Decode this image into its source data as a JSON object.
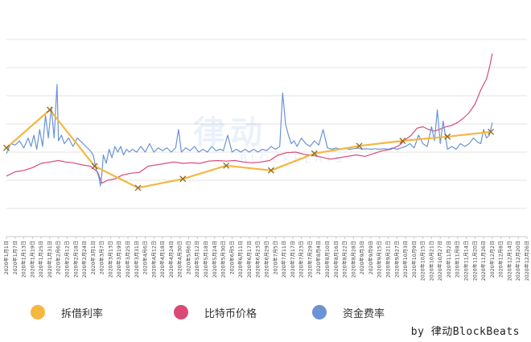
{
  "watermark": {
    "text": "律动",
    "sub": "BLOCKBEATS"
  },
  "credit": "by 律动BlockBeats",
  "legend": [
    {
      "label": "拆借利率",
      "color": "#f4b740"
    },
    {
      "label": "比特币价格",
      "color": "#d94a77"
    },
    {
      "label": "资金费率",
      "color": "#6b93d6"
    }
  ],
  "chart_data": {
    "type": "line",
    "title": "",
    "grid": true,
    "x_tick_labels": [
      "2020年1月1日",
      "2020年1月7日",
      "2020年1月13日",
      "2020年1月19日",
      "2020年1月25日",
      "2020年1月31日",
      "2020年2月6日",
      "2020年2月12日",
      "2020年2月18日",
      "2020年2月24日",
      "2020年3月1日",
      "2020年3月7日",
      "2020年3月13日",
      "2020年3月19日",
      "2020年3月25日",
      "2020年3月31日",
      "2020年4月6日",
      "2020年4月12日",
      "2020年4月18日",
      "2020年4月24日",
      "2020年4月30日",
      "2020年5月6日",
      "2020年5月12日",
      "2020年5月18日",
      "2020年5月24日",
      "2020年5月30日",
      "2020年6月5日",
      "2020年6月11日",
      "2020年6月17日",
      "2020年6月23日",
      "2020年6月29日",
      "2020年7月5日",
      "2020年7月11日",
      "2020年7月17日",
      "2020年7月23日",
      "2020年7月29日",
      "2020年8月4日",
      "2020年8月10日",
      "2020年8月16日",
      "2020年8月22日",
      "2020年8月28日",
      "2020年9月3日",
      "2020年9月9日",
      "2020年9月15日",
      "2020年9月21日",
      "2020年9月27日",
      "2020年10月3日",
      "2020年10月9日",
      "2020年10月15日",
      "2020年10月21日",
      "2020年10月27日",
      "2020年11月2日",
      "2020年11月8日",
      "2020年11月14日",
      "2020年11月20日",
      "2020年11月26日",
      "2020年12月2日",
      "2020年12月8日",
      "2020年12月14日",
      "2020年12月20日",
      "2020年12月26日"
    ],
    "y_range": [
      0,
      8
    ],
    "y_gridlines": [
      1,
      2,
      3,
      4,
      5,
      6,
      7
    ],
    "series": [
      {
        "name": "拆借利率",
        "color": "#f4b740",
        "marker": "x",
        "points": [
          [
            0,
            3.15
          ],
          [
            30,
            4.5
          ],
          [
            61,
            2.5
          ],
          [
            91,
            1.73
          ],
          [
            122,
            2.05
          ],
          [
            152,
            2.52
          ],
          [
            183,
            2.35
          ],
          [
            213,
            2.95
          ],
          [
            244,
            3.22
          ],
          [
            274,
            3.4
          ],
          [
            305,
            3.55
          ],
          [
            335,
            3.72
          ]
        ]
      },
      {
        "name": "比特币价格",
        "color": "#d94a77",
        "points": [
          [
            0,
            2.15
          ],
          [
            6,
            2.3
          ],
          [
            12,
            2.35
          ],
          [
            18,
            2.45
          ],
          [
            24,
            2.6
          ],
          [
            30,
            2.65
          ],
          [
            36,
            2.7
          ],
          [
            41,
            2.65
          ],
          [
            46,
            2.62
          ],
          [
            52,
            2.55
          ],
          [
            58,
            2.5
          ],
          [
            63,
            2.3
          ],
          [
            66,
            1.9
          ],
          [
            70,
            2.0
          ],
          [
            75,
            2.05
          ],
          [
            80,
            2.18
          ],
          [
            86,
            2.25
          ],
          [
            92,
            2.28
          ],
          [
            98,
            2.5
          ],
          [
            104,
            2.55
          ],
          [
            110,
            2.6
          ],
          [
            116,
            2.65
          ],
          [
            122,
            2.6
          ],
          [
            128,
            2.62
          ],
          [
            134,
            2.6
          ],
          [
            140,
            2.68
          ],
          [
            146,
            2.7
          ],
          [
            152,
            2.68
          ],
          [
            158,
            2.7
          ],
          [
            164,
            2.65
          ],
          [
            170,
            2.62
          ],
          [
            176,
            2.65
          ],
          [
            182,
            2.7
          ],
          [
            188,
            2.9
          ],
          [
            194,
            2.98
          ],
          [
            200,
            3.0
          ],
          [
            206,
            2.92
          ],
          [
            212,
            2.88
          ],
          [
            218,
            2.82
          ],
          [
            224,
            2.75
          ],
          [
            230,
            2.8
          ],
          [
            236,
            2.85
          ],
          [
            242,
            2.9
          ],
          [
            248,
            2.85
          ],
          [
            254,
            2.95
          ],
          [
            260,
            3.05
          ],
          [
            266,
            3.1
          ],
          [
            272,
            3.25
          ],
          [
            276,
            3.45
          ],
          [
            280,
            3.6
          ],
          [
            284,
            3.85
          ],
          [
            288,
            3.9
          ],
          [
            292,
            3.8
          ],
          [
            296,
            3.75
          ],
          [
            300,
            3.82
          ],
          [
            304,
            3.9
          ],
          [
            308,
            3.95
          ],
          [
            312,
            4.05
          ],
          [
            316,
            4.2
          ],
          [
            320,
            4.4
          ],
          [
            324,
            4.7
          ],
          [
            328,
            5.2
          ],
          [
            332,
            5.6
          ],
          [
            334,
            6.0
          ],
          [
            336,
            6.5
          ]
        ]
      },
      {
        "name": "资金费率",
        "color": "#6b93d6",
        "points": [
          [
            0,
            2.95
          ],
          [
            3,
            3.3
          ],
          [
            6,
            3.25
          ],
          [
            9,
            3.4
          ],
          [
            12,
            3.15
          ],
          [
            15,
            3.5
          ],
          [
            17,
            3.2
          ],
          [
            19,
            3.6
          ],
          [
            21,
            3.1
          ],
          [
            23,
            3.8
          ],
          [
            25,
            3.2
          ],
          [
            27,
            4.3
          ],
          [
            29,
            3.5
          ],
          [
            31,
            4.6
          ],
          [
            33,
            3.5
          ],
          [
            34,
            4.5
          ],
          [
            35,
            5.4
          ],
          [
            36,
            3.4
          ],
          [
            38,
            3.6
          ],
          [
            40,
            3.3
          ],
          [
            43,
            3.5
          ],
          [
            46,
            3.2
          ],
          [
            49,
            3.5
          ],
          [
            52,
            3.35
          ],
          [
            55,
            3.2
          ],
          [
            58,
            3.05
          ],
          [
            60,
            2.9
          ],
          [
            62,
            2.4
          ],
          [
            64,
            2.1
          ],
          [
            65,
            1.8
          ],
          [
            66,
            2.2
          ],
          [
            67,
            2.9
          ],
          [
            69,
            2.6
          ],
          [
            71,
            3.1
          ],
          [
            73,
            2.8
          ],
          [
            75,
            3.2
          ],
          [
            77,
            3.0
          ],
          [
            79,
            3.2
          ],
          [
            81,
            2.9
          ],
          [
            83,
            3.1
          ],
          [
            85,
            3.0
          ],
          [
            87,
            3.1
          ],
          [
            90,
            3.0
          ],
          [
            93,
            3.2
          ],
          [
            96,
            3.0
          ],
          [
            99,
            3.3
          ],
          [
            102,
            3.0
          ],
          [
            105,
            3.15
          ],
          [
            108,
            3.05
          ],
          [
            111,
            3.15
          ],
          [
            114,
            3.0
          ],
          [
            117,
            3.15
          ],
          [
            119,
            3.8
          ],
          [
            121,
            3.0
          ],
          [
            124,
            3.15
          ],
          [
            127,
            3.05
          ],
          [
            130,
            3.2
          ],
          [
            133,
            3.0
          ],
          [
            136,
            3.1
          ],
          [
            139,
            3.0
          ],
          [
            142,
            3.2
          ],
          [
            145,
            3.05
          ],
          [
            148,
            3.1
          ],
          [
            150,
            3.05
          ],
          [
            153,
            3.6
          ],
          [
            156,
            3.0
          ],
          [
            159,
            3.1
          ],
          [
            162,
            3.0
          ],
          [
            165,
            3.1
          ],
          [
            168,
            3.0
          ],
          [
            171,
            3.1
          ],
          [
            174,
            3.0
          ],
          [
            177,
            3.1
          ],
          [
            180,
            3.05
          ],
          [
            183,
            3.2
          ],
          [
            186,
            3.1
          ],
          [
            189,
            3.2
          ],
          [
            191,
            5.1
          ],
          [
            193,
            4.0
          ],
          [
            195,
            3.6
          ],
          [
            197,
            3.3
          ],
          [
            199,
            3.4
          ],
          [
            201,
            3.2
          ],
          [
            204,
            3.5
          ],
          [
            207,
            3.3
          ],
          [
            210,
            3.2
          ],
          [
            213,
            3.4
          ],
          [
            216,
            3.25
          ],
          [
            219,
            3.8
          ],
          [
            222,
            3.15
          ],
          [
            225,
            3.1
          ],
          [
            228,
            3.15
          ],
          [
            231,
            3.1
          ],
          [
            234,
            3.15
          ],
          [
            237,
            3.1
          ],
          [
            240,
            3.12
          ],
          [
            243,
            3.15
          ],
          [
            246,
            3.1
          ],
          [
            249,
            3.12
          ],
          [
            252,
            3.1
          ],
          [
            255,
            3.12
          ],
          [
            258,
            3.1
          ],
          [
            261,
            3.12
          ],
          [
            264,
            3.1
          ],
          [
            267,
            3.15
          ],
          [
            270,
            3.1
          ],
          [
            273,
            3.15
          ],
          [
            276,
            3.2
          ],
          [
            279,
            3.3
          ],
          [
            282,
            3.15
          ],
          [
            285,
            3.6
          ],
          [
            288,
            3.3
          ],
          [
            291,
            3.2
          ],
          [
            294,
            3.9
          ],
          [
            296,
            3.4
          ],
          [
            298,
            4.5
          ],
          [
            300,
            3.3
          ],
          [
            302,
            4.1
          ],
          [
            305,
            3.1
          ],
          [
            308,
            3.2
          ],
          [
            311,
            3.1
          ],
          [
            314,
            3.3
          ],
          [
            317,
            3.2
          ],
          [
            320,
            3.3
          ],
          [
            323,
            3.5
          ],
          [
            326,
            3.35
          ],
          [
            328,
            3.3
          ],
          [
            330,
            3.8
          ],
          [
            332,
            3.5
          ],
          [
            334,
            3.6
          ],
          [
            336,
            4.05
          ]
        ]
      }
    ]
  }
}
